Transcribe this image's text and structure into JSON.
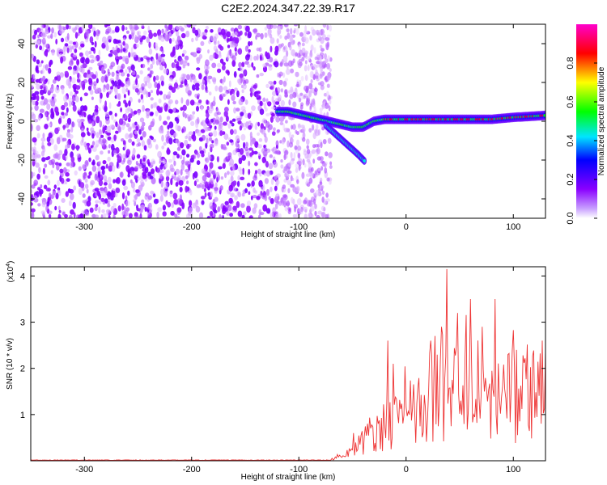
{
  "chart_data": [
    {
      "type": "heatmap",
      "title": "C2E2.2024.347.22.39.R17",
      "xlabel": "Height of straight line (km)",
      "ylabel": "Frequency (Hz)",
      "xlim": [
        -350,
        130
      ],
      "ylim": [
        -50,
        50
      ],
      "xticks": [
        -300,
        -200,
        -100,
        0,
        100
      ],
      "xtick_labels": [
        "-300",
        "-200",
        "-100",
        "0",
        "100"
      ],
      "yticks": [
        -40,
        -20,
        0,
        20,
        40
      ],
      "ytick_labels": [
        "-40",
        "-20",
        "0",
        "20",
        "40"
      ],
      "noise_region_x": [
        -350,
        -80
      ],
      "coherent_track": [
        {
          "x": -120,
          "y": 5
        },
        {
          "x": -110,
          "y": 5
        },
        {
          "x": -95,
          "y": 3
        },
        {
          "x": -80,
          "y": 1
        },
        {
          "x": -65,
          "y": -1
        },
        {
          "x": -50,
          "y": -3
        },
        {
          "x": -40,
          "y": -3
        },
        {
          "x": -30,
          "y": 0
        },
        {
          "x": -20,
          "y": 1
        },
        {
          "x": 0,
          "y": 1
        },
        {
          "x": 20,
          "y": 1
        },
        {
          "x": 40,
          "y": 1
        },
        {
          "x": 60,
          "y": 1
        },
        {
          "x": 80,
          "y": 1
        },
        {
          "x": 100,
          "y": 2
        },
        {
          "x": 130,
          "y": 3
        }
      ],
      "lower_branch": [
        {
          "x": -75,
          "y": -2
        },
        {
          "x": -65,
          "y": -7
        },
        {
          "x": -55,
          "y": -12
        },
        {
          "x": -45,
          "y": -17
        },
        {
          "x": -38,
          "y": -21
        }
      ],
      "colorbar": {
        "label": "Normalized spectral amplitude",
        "ticks": [
          0.0,
          0.2,
          0.4,
          0.6,
          0.8
        ],
        "tick_labels": [
          "0.0",
          "0.2",
          "0.4",
          "0.6",
          "0.8"
        ],
        "range": [
          0,
          1
        ],
        "colors": [
          "#ffffff",
          "#8a00ff",
          "#0000ff",
          "#00e5ff",
          "#00ff00",
          "#ffff00",
          "#ff0000",
          "#ff00cc"
        ]
      }
    },
    {
      "type": "line",
      "xlabel": "Height of straight line (km)",
      "ylabel": "SNR (10 * v/v)",
      "scale_label": "(x10",
      "scale_exponent": "4",
      "scale_close": ")",
      "xlim": [
        -350,
        130
      ],
      "ylim": [
        0,
        4.2
      ],
      "xticks": [
        -300,
        -200,
        -100,
        0,
        100
      ],
      "xtick_labels": [
        "-300",
        "-200",
        "-100",
        "0",
        "100"
      ],
      "yticks": [
        1,
        2,
        3,
        4
      ],
      "ytick_labels": [
        "1",
        "2",
        "3",
        "4"
      ],
      "color": "#ee3333",
      "x_step": 1,
      "envelope": [
        {
          "x": -350,
          "y": 0.01
        },
        {
          "x": -70,
          "y": 0.03
        },
        {
          "x": -55,
          "y": 0.15
        },
        {
          "x": -40,
          "y": 0.5
        },
        {
          "x": -25,
          "y": 0.8
        },
        {
          "x": -15,
          "y": 0.9
        },
        {
          "x": -5,
          "y": 0.9
        },
        {
          "x": 10,
          "y": 1.2
        },
        {
          "x": 25,
          "y": 1.5
        },
        {
          "x": 40,
          "y": 1.6
        },
        {
          "x": 60,
          "y": 1.6
        },
        {
          "x": 80,
          "y": 1.5
        },
        {
          "x": 100,
          "y": 1.5
        },
        {
          "x": 130,
          "y": 1.6
        }
      ],
      "peaks": [
        {
          "x": -17,
          "y": 2.6
        },
        {
          "x": -12,
          "y": 2.1
        },
        {
          "x": 23,
          "y": 2.6
        },
        {
          "x": 33,
          "y": 2.9
        },
        {
          "x": 38,
          "y": 4.15
        },
        {
          "x": 47,
          "y": 2.5
        },
        {
          "x": 60,
          "y": 3.5
        },
        {
          "x": 71,
          "y": 2.9
        },
        {
          "x": 83,
          "y": 3.5
        },
        {
          "x": 95,
          "y": 2.3
        },
        {
          "x": 103,
          "y": 2.4
        },
        {
          "x": 127,
          "y": 2.6
        }
      ]
    }
  ]
}
